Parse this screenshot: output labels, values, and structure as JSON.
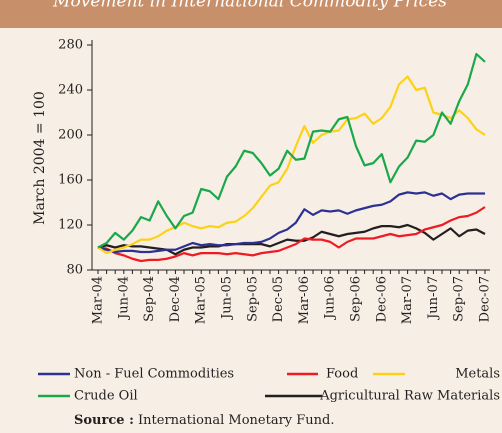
{
  "chart_data": {
    "type": "line",
    "title": "Movement in International Commodity Prices",
    "y_label": "March 2004 = 100",
    "source_label": "Source :",
    "source": "International Monetary Fund.",
    "categories": [
      "Mar-04",
      null,
      null,
      "Jun-04",
      null,
      null,
      "Sep-04",
      null,
      null,
      "Dec-04",
      null,
      null,
      "Mar-05",
      null,
      null,
      "Jun-05",
      null,
      null,
      "Sep-05",
      null,
      null,
      "Dec-05",
      null,
      null,
      "Mar-06",
      null,
      null,
      "Jun-06",
      null,
      null,
      "Sep-06",
      null,
      null,
      "Dec-06",
      null,
      null,
      "Mar-07",
      null,
      null,
      "Jun-07",
      null,
      null,
      "Sep-07",
      null,
      null,
      "Dec-07"
    ],
    "ylim": [
      80,
      280
    ],
    "yticks": [
      80,
      120,
      160,
      200,
      240,
      280
    ],
    "series": [
      {
        "name": "Non - Fuel Commodities",
        "color": "#2e3192",
        "values": [
          100,
          98,
          96,
          97,
          97,
          96,
          96,
          97,
          98,
          98,
          101,
          104,
          102,
          103,
          102,
          102,
          103,
          104,
          104,
          105,
          108,
          113,
          116,
          122,
          134,
          129,
          133,
          132,
          133,
          130,
          133,
          135,
          137,
          138,
          141,
          147,
          149,
          148,
          149,
          146,
          148,
          143,
          147,
          148,
          148,
          148
        ]
      },
      {
        "name": "Food",
        "color": "#ed1c24",
        "values": [
          100,
          99,
          95,
          93,
          90,
          88,
          89,
          89,
          90,
          92,
          95,
          93,
          95,
          95,
          95,
          94,
          95,
          94,
          93,
          95,
          96,
          97,
          100,
          103,
          108,
          107,
          107,
          105,
          100,
          105,
          108,
          108,
          108,
          110,
          112,
          110,
          111,
          112,
          116,
          118,
          120,
          124,
          127,
          128,
          131,
          136
        ]
      },
      {
        "name": "Metals",
        "color": "#fcd116",
        "values": [
          100,
          95,
          98,
          100,
          103,
          107,
          107,
          110,
          115,
          118,
          122,
          119,
          117,
          119,
          118,
          122,
          123,
          128,
          135,
          145,
          155,
          158,
          170,
          190,
          208,
          193,
          200,
          203,
          204,
          214,
          215,
          219,
          210,
          215,
          225,
          245,
          252,
          240,
          242,
          220,
          218,
          215,
          222,
          215,
          205,
          200
        ]
      },
      {
        "name": "Crude Oil",
        "color": "#1aa84a",
        "values": [
          100,
          104,
          113,
          107,
          115,
          127,
          124,
          141,
          128,
          117,
          128,
          131,
          152,
          150,
          143,
          163,
          172,
          186,
          184,
          175,
          164,
          170,
          186,
          178,
          179,
          203,
          204,
          203,
          214,
          216,
          190,
          173,
          175,
          183,
          158,
          172,
          180,
          195,
          194,
          200,
          220,
          210,
          230,
          245,
          272,
          265
        ]
      },
      {
        "name": "Agricultural Raw Materials",
        "color": "#231f20",
        "values": [
          100,
          102,
          100,
          102,
          101,
          101,
          100,
          99,
          98,
          94,
          98,
          100,
          100,
          101,
          101,
          103,
          103,
          103,
          103,
          103,
          101,
          104,
          107,
          106,
          106,
          109,
          114,
          112,
          110,
          112,
          113,
          114,
          117,
          119,
          119,
          118,
          120,
          117,
          113,
          107,
          112,
          117,
          110,
          115,
          116,
          112
        ]
      }
    ]
  }
}
